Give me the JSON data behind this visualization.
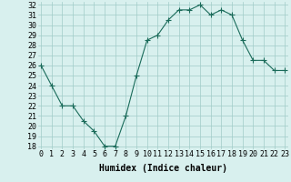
{
  "x": [
    0,
    1,
    2,
    3,
    4,
    5,
    6,
    7,
    8,
    9,
    10,
    11,
    12,
    13,
    14,
    15,
    16,
    17,
    18,
    19,
    20,
    21,
    22,
    23
  ],
  "y": [
    26,
    24,
    22,
    22,
    20.5,
    19.5,
    18,
    18,
    21,
    25,
    28.5,
    29,
    30.5,
    31.5,
    31.5,
    32,
    31,
    31.5,
    31,
    28.5,
    26.5,
    26.5,
    25.5,
    25.5
  ],
  "xlabel": "Humidex (Indice chaleur)",
  "ylim": [
    18,
    32
  ],
  "xlim": [
    0,
    23
  ],
  "yticks": [
    18,
    19,
    20,
    21,
    22,
    23,
    24,
    25,
    26,
    27,
    28,
    29,
    30,
    31,
    32
  ],
  "xticks": [
    0,
    1,
    2,
    3,
    4,
    5,
    6,
    7,
    8,
    9,
    10,
    11,
    12,
    13,
    14,
    15,
    16,
    17,
    18,
    19,
    20,
    21,
    22,
    23
  ],
  "line_color": "#1a6b5a",
  "marker": "+",
  "marker_color": "#1a6b5a",
  "bg_color": "#d8f0ee",
  "grid_color": "#a0ccc8",
  "tick_fontsize": 6,
  "xlabel_fontsize": 7
}
